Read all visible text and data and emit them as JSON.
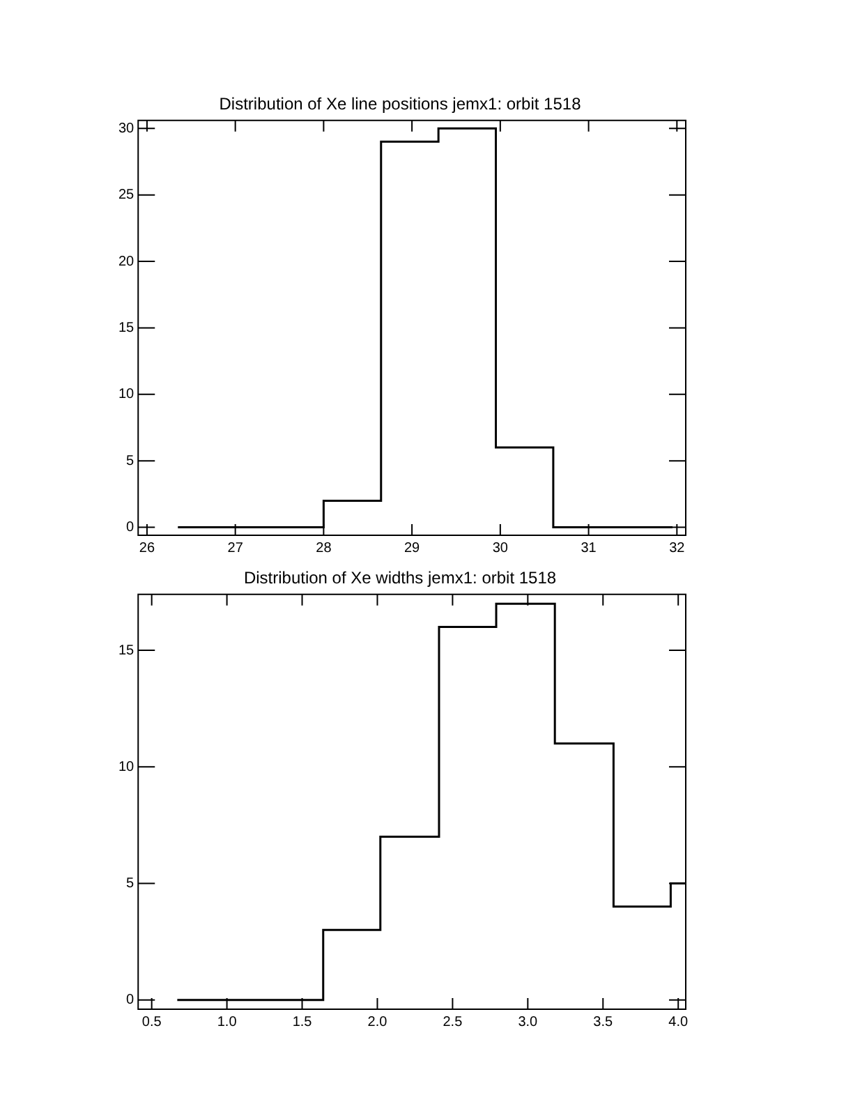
{
  "chart_data": [
    {
      "type": "histogram",
      "title": "Distribution of Xe line positions jemx1: orbit 1518",
      "color": "#000000",
      "bins": [
        26.35,
        26.7,
        27.35,
        28.0,
        28.65,
        29.3,
        29.95,
        30.6,
        31.25,
        31.95
      ],
      "values": [
        0,
        0,
        0,
        2,
        29,
        30,
        6,
        0,
        0
      ],
      "xlim": [
        25.9,
        32.1
      ],
      "xticks": [
        26,
        27,
        28,
        29,
        30,
        31,
        32
      ],
      "ylim": [
        -0.6,
        30.6
      ],
      "yticks": [
        0,
        5,
        10,
        15,
        20,
        25,
        30
      ]
    },
    {
      "type": "histogram",
      "title": "Distribution of Xe widths jemx1: orbit 1518",
      "color": "#000000",
      "bins": [
        0.67,
        0.87,
        1.25,
        1.64,
        2.02,
        2.41,
        2.79,
        3.18,
        3.57,
        3.95,
        4.05
      ],
      "values": [
        0,
        0,
        0,
        3,
        7,
        16,
        17,
        11,
        4,
        5
      ],
      "xlim": [
        0.41,
        4.05
      ],
      "xticks": [
        {
          "value": 0.5,
          "label": "0.5"
        },
        {
          "value": 1,
          "label": "1.0"
        },
        {
          "value": 1.5,
          "label": "1.5"
        },
        {
          "value": 2,
          "label": "2.0"
        },
        {
          "value": 2.5,
          "label": "2.5"
        },
        {
          "value": 3,
          "label": "3.0"
        },
        {
          "value": 3.5,
          "label": "3.5"
        },
        {
          "value": 4,
          "label": "4.0"
        }
      ],
      "ylim": [
        -0.4,
        17.4
      ],
      "yticks": [
        0,
        5,
        10,
        15
      ]
    }
  ]
}
